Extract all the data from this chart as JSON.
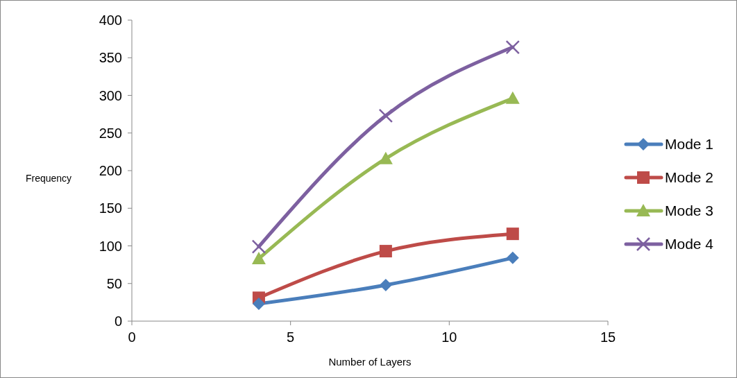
{
  "chart_data": {
    "type": "line",
    "xlabel": "Number of Layers",
    "ylabel": "Frequency",
    "x": [
      4,
      8,
      12
    ],
    "xlim": [
      0,
      15
    ],
    "xticks": [
      0,
      5,
      10,
      15
    ],
    "ylim": [
      0,
      400
    ],
    "yticks": [
      0,
      50,
      100,
      150,
      200,
      250,
      300,
      350,
      400
    ],
    "grid": false,
    "legend": "right",
    "series": [
      {
        "name": "Mode 1",
        "color": "#4a7ebb",
        "marker": "diamond",
        "values": [
          23,
          48,
          84
        ]
      },
      {
        "name": "Mode 2",
        "color": "#be4b48",
        "marker": "square",
        "values": [
          31,
          93,
          116
        ]
      },
      {
        "name": "Mode 3",
        "color": "#98b954",
        "marker": "triangle",
        "values": [
          83,
          216,
          296
        ]
      },
      {
        "name": "Mode 4",
        "color": "#7d60a0",
        "marker": "cross",
        "values": [
          99,
          273,
          364
        ]
      }
    ]
  }
}
